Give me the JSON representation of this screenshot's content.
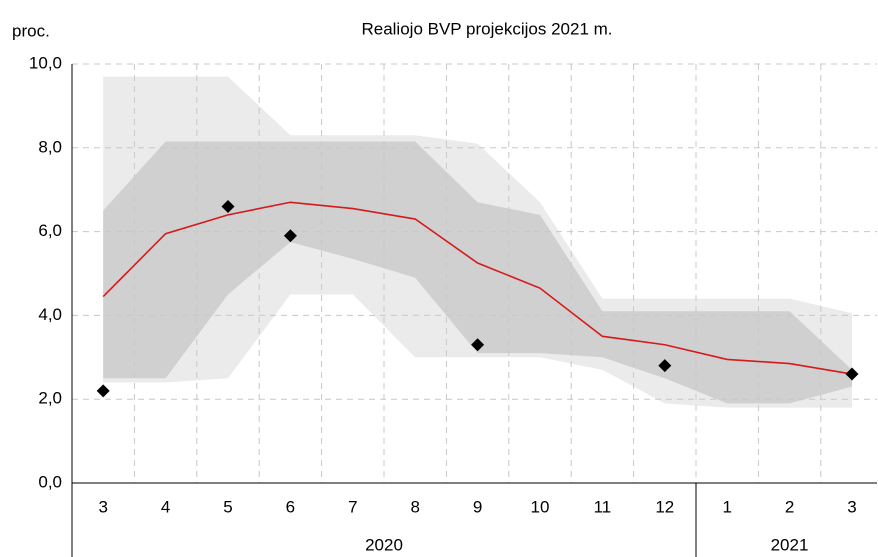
{
  "chart_data": {
    "type": "band_line",
    "title": "Realiojo BVP projekcijos 2021 m.",
    "y_label": "proc.",
    "categories": [
      "3",
      "4",
      "5",
      "6",
      "7",
      "8",
      "9",
      "10",
      "11",
      "12",
      "1",
      "2",
      "3"
    ],
    "groups": [
      {
        "label": "2020",
        "count": 10
      },
      {
        "label": "2021",
        "count": 3
      }
    ],
    "ylim": [
      0,
      10
    ],
    "yticks": [
      {
        "value": 0,
        "label": "0,0"
      },
      {
        "value": 2,
        "label": "2,0"
      },
      {
        "value": 4,
        "label": "4,0"
      },
      {
        "value": 6,
        "label": "6,0"
      },
      {
        "value": 8,
        "label": "8,0"
      },
      {
        "value": 10,
        "label": "10,0"
      }
    ],
    "grid": true,
    "bands": [
      {
        "color": "#ebebeb",
        "lower": [
          2.4,
          2.4,
          2.5,
          4.5,
          4.5,
          3.0,
          3.0,
          3.0,
          2.7,
          1.9,
          1.8,
          1.8,
          1.8
        ],
        "upper": [
          9.7,
          9.7,
          9.7,
          8.3,
          8.3,
          8.3,
          8.1,
          6.7,
          4.4,
          4.4,
          4.4,
          4.4,
          4.05
        ]
      },
      {
        "color": "#d0d0d0",
        "lower": [
          2.5,
          2.5,
          4.5,
          5.75,
          5.35,
          4.9,
          3.1,
          3.1,
          3.0,
          2.5,
          1.9,
          1.9,
          2.3
        ],
        "upper": [
          6.5,
          8.15,
          8.15,
          8.15,
          8.15,
          8.15,
          6.7,
          6.4,
          4.1,
          4.1,
          4.1,
          4.1,
          2.7
        ]
      }
    ],
    "line": {
      "color": "#d7191c",
      "values": [
        4.45,
        5.95,
        6.4,
        6.7,
        6.55,
        6.3,
        5.25,
        4.65,
        3.5,
        3.3,
        2.95,
        2.85,
        2.6
      ]
    },
    "points": {
      "color": "#000000",
      "values": [
        2.2,
        null,
        6.6,
        5.9,
        null,
        null,
        3.3,
        null,
        null,
        2.8,
        null,
        null,
        2.6
      ]
    }
  }
}
